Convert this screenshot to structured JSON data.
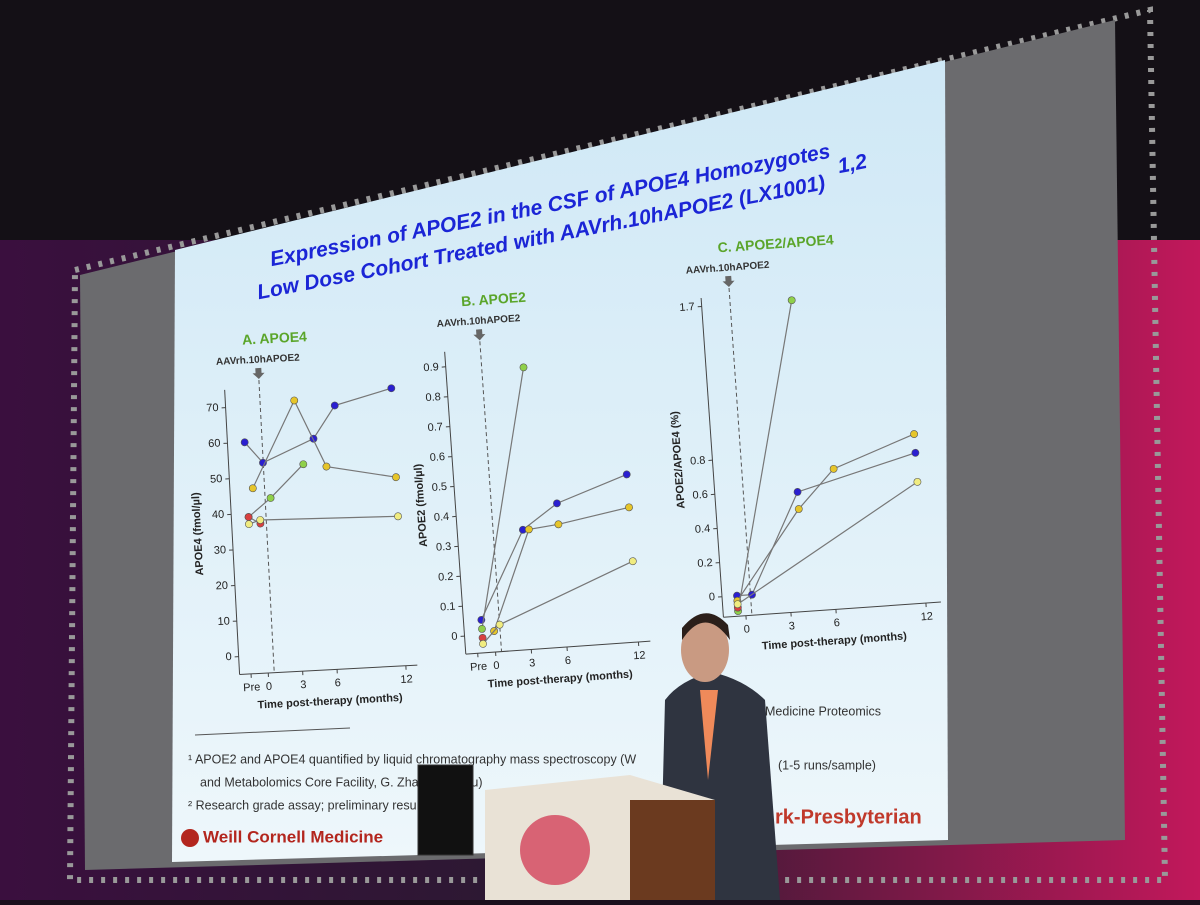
{
  "slide": {
    "title": [
      "Expression of APOE2 in the CSF of APOE4 Homozygotes",
      "Low Dose Cohort Treated with  AAVrh.10hAPOE2 (LX1001)"
    ],
    "title_superscript": "1,2",
    "footnotes": [
      "¹ APOE2 and APOE4 quantified by liquid chromatography mass spectroscopy (W",
      "and Metabolomics Core Facility, G. Zhang, M. Zhu)",
      "² Research grade assay; preliminary resul",
      "Medicine Proteomics",
      "(1-5 runs/sample)"
    ],
    "logo_left": "Weill Cornell Medicine",
    "logo_right": "rk-Presbyterian"
  },
  "chart_data": [
    {
      "type": "line",
      "title": "A. APOE4",
      "annotation": "AAVrh.10hAPOE2",
      "xlabel": "Time post-therapy (months)",
      "ylabel": "APOE4 (fmol/µl)",
      "xlim": [
        -2.5,
        13
      ],
      "xticks": [
        {
          "value": -1.5,
          "label": "Pre"
        },
        0,
        3,
        6,
        12
      ],
      "ylim": [
        -5,
        75
      ],
      "yticks": [
        0,
        10,
        20,
        30,
        40,
        50,
        60,
        70
      ],
      "series": [
        {
          "color": "#2a1fd0",
          "x": [
            -1,
            0.5,
            5,
            7,
            12
          ],
          "values": [
            60,
            54,
            60,
            69,
            73
          ]
        },
        {
          "color": "#e6c52a",
          "x": [
            -0.5,
            3.5,
            6,
            12
          ],
          "values": [
            47,
            71,
            52,
            48
          ]
        },
        {
          "color": "#8fd04a",
          "x": [
            -1,
            1,
            4
          ],
          "values": [
            39,
            44,
            53
          ]
        },
        {
          "color": "#d94040",
          "x": [
            -1,
            0
          ],
          "values": [
            39,
            37
          ]
        },
        {
          "color": "#f0ec80",
          "x": [
            -1,
            0,
            12
          ],
          "values": [
            37,
            38,
            37
          ]
        }
      ]
    },
    {
      "type": "line",
      "title": "B. APOE2",
      "annotation": "AAVrh.10hAPOE2",
      "xlabel": "Time post-therapy (months)",
      "ylabel": "APOE2 (fmol/µl)",
      "xlim": [
        -2.5,
        13
      ],
      "xticks": [
        {
          "value": -1.5,
          "label": "Pre"
        },
        0,
        3,
        6,
        12
      ],
      "ylim": [
        -0.06,
        0.95
      ],
      "yticks": [
        0,
        0.1,
        0.2,
        0.3,
        0.4,
        0.5,
        0.6,
        0.7,
        0.8,
        0.9
      ],
      "series": [
        {
          "color": "#2a1fd0",
          "x": [
            -1,
            3,
            6,
            12
          ],
          "values": [
            0.05,
            0.34,
            0.42,
            0.5
          ]
        },
        {
          "color": "#e6c52a",
          "x": [
            0,
            3.5,
            6,
            12
          ],
          "values": [
            0.01,
            0.34,
            0.35,
            0.39
          ]
        },
        {
          "color": "#8fd04a",
          "x": [
            -1,
            4
          ],
          "values": [
            0.02,
            0.88
          ]
        },
        {
          "color": "#d94040",
          "x": [
            -1
          ],
          "values": [
            -0.01
          ]
        },
        {
          "color": "#f0ec80",
          "x": [
            -1,
            0.5,
            12
          ],
          "values": [
            -0.03,
            0.03,
            0.21
          ]
        }
      ]
    },
    {
      "type": "line",
      "title": "C. APOE2/APOE4",
      "annotation": "AAVrh.10hAPOE2",
      "xlabel": "Time post-therapy (months)",
      "ylabel": "APOE2/APOE4 (%)",
      "xlim": [
        -1.5,
        13
      ],
      "xticks": [
        0,
        3,
        6,
        12
      ],
      "ylim": [
        -0.12,
        1.75
      ],
      "yticks": [
        0,
        0.2,
        0.4,
        0.6,
        0.8,
        1.7
      ],
      "series": [
        {
          "color": "#2a1fd0",
          "x": [
            -0.5,
            0.5,
            4,
            12
          ],
          "values": [
            0,
            0,
            0.58,
            0.76
          ]
        },
        {
          "color": "#e6c52a",
          "x": [
            -0.5,
            4,
            6.5,
            12
          ],
          "values": [
            -0.03,
            0.48,
            0.7,
            0.87
          ]
        },
        {
          "color": "#8fd04a",
          "x": [
            -0.5,
            4.5
          ],
          "values": [
            -0.09,
            1.7
          ]
        },
        {
          "color": "#d94040",
          "x": [
            -0.5
          ],
          "values": [
            -0.07
          ]
        },
        {
          "color": "#f0ec80",
          "x": [
            -0.5,
            12
          ],
          "values": [
            -0.05,
            0.59
          ]
        }
      ]
    }
  ]
}
